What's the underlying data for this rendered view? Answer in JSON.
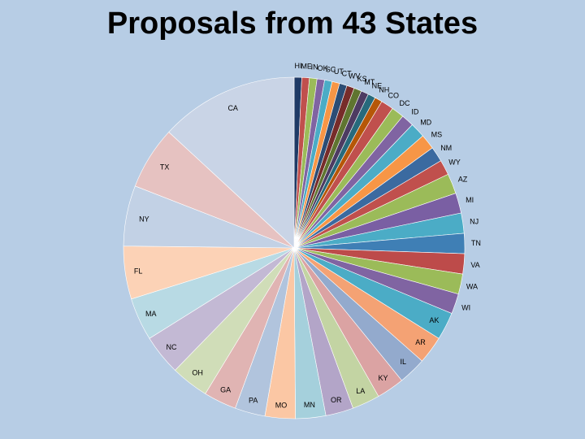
{
  "slide": {
    "title": "Proposals from 43 States"
  },
  "chart_data": {
    "type": "pie",
    "title": "",
    "categories": [
      "HI",
      "ME",
      "IN",
      "OK",
      "SC",
      "UT",
      "CT",
      "WV",
      "KS",
      "MT",
      "NE",
      "NH",
      "CO",
      "DC",
      "ID",
      "MD",
      "MS",
      "NM",
      "WY",
      "AZ",
      "MI",
      "NJ",
      "TN",
      "VA",
      "WA",
      "WI",
      "AK",
      "AR",
      "IL",
      "KY",
      "LA",
      "OR",
      "MN",
      "MO",
      "PA",
      "GA",
      "OH",
      "NC",
      "MA",
      "FL",
      "NY",
      "TX",
      "CA"
    ],
    "values": [
      3,
      3,
      3,
      3,
      3,
      3,
      3,
      3,
      3,
      3,
      3,
      3,
      5,
      5,
      5,
      6,
      6,
      6,
      6,
      8,
      8,
      8,
      8,
      8,
      8,
      8,
      11,
      11,
      11,
      11,
      11,
      11,
      12,
      12,
      12,
      13,
      15,
      16,
      17,
      21,
      24,
      25,
      55
    ],
    "colors": [
      "#1f3a66",
      "#c0504d",
      "#9bbb59",
      "#8064a2",
      "#4bacc6",
      "#f79646",
      "#2c4d75",
      "#772c2a",
      "#5f7530",
      "#4d3b62",
      "#276a7c",
      "#b65708",
      "#c0504d",
      "#9bbb59",
      "#8064a2",
      "#4bacc6",
      "#f79646",
      "#3b6aa0",
      "#c0504d",
      "#9bbb59",
      "#7a5fa3",
      "#4bacc6",
      "#3f7fb5",
      "#bd4b4a",
      "#9bbb59",
      "#8064a2",
      "#4bacc6",
      "#f4a274",
      "#93aacd",
      "#dba3a3",
      "#c3d4a3",
      "#b3a5c8",
      "#a5d0dc",
      "#fbc7a4",
      "#b1c4dd",
      "#e0b4b3",
      "#d0ddb8",
      "#c3b9d4",
      "#b8dae4",
      "#fcd2b6",
      "#c2d1e5",
      "#e6c2c1",
      "#c9d4e6"
    ]
  }
}
